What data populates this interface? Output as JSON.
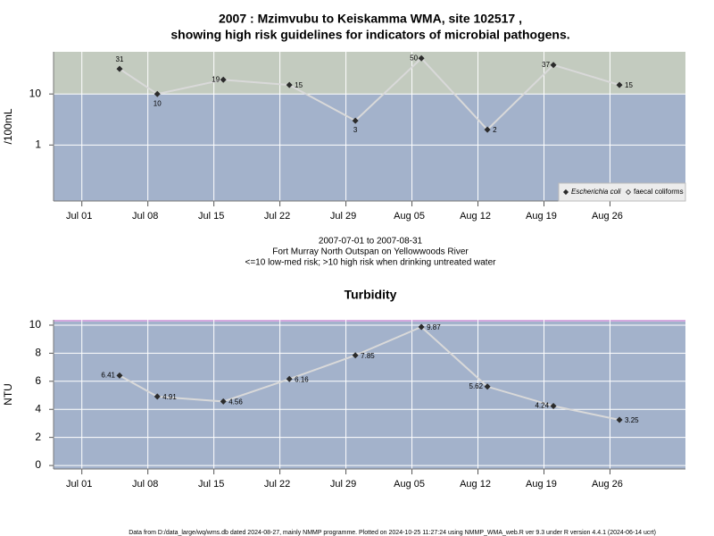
{
  "chart_data": [
    {
      "type": "line",
      "title": [
        "2007 : Mzimvubu to Keiskamma WMA, site 102517 ,",
        "showing high risk guidelines for indicators of microbial pathogens."
      ],
      "subtitle": [
        "2007-07-01 to 2007-08-31",
        "Fort Murray North Outspan on Yellowwoods River",
        "<=10 low-med risk; >10 high risk when drinking untreated water"
      ],
      "ylabel": "/100mL",
      "log_y": true,
      "threshold": 10,
      "above_color": "#c3cbbf",
      "below_color": "#a3b2cb",
      "x": [
        "2007-07-05",
        "2007-07-09",
        "2007-07-16",
        "2007-07-23",
        "2007-07-30",
        "2007-08-06",
        "2007-08-13",
        "2007-08-20",
        "2007-08-27"
      ],
      "xlim": [
        "2007-06-28",
        "2007-09-03"
      ],
      "xticks": [
        {
          "value": "2007-07-01",
          "label": "Jul 01"
        },
        {
          "value": "2007-07-08",
          "label": "Jul 08"
        },
        {
          "value": "2007-07-15",
          "label": "Jul 15"
        },
        {
          "value": "2007-07-22",
          "label": "Jul 22"
        },
        {
          "value": "2007-07-29",
          "label": "Jul 29"
        },
        {
          "value": "2007-08-05",
          "label": "Aug 05"
        },
        {
          "value": "2007-08-12",
          "label": "Aug 12"
        },
        {
          "value": "2007-08-19",
          "label": "Aug 19"
        },
        {
          "value": "2007-08-26",
          "label": "Aug 26"
        }
      ],
      "ylim": [
        0.08,
        67
      ],
      "yticks": [
        1,
        10
      ],
      "grid": true,
      "legend": "bottom right",
      "series": [
        {
          "name": "Escherichia coli",
          "color": "#2b2b2b",
          "values": [
            31,
            10,
            19,
            15,
            3,
            50,
            2,
            37,
            15
          ]
        },
        {
          "name": "faecal coliforms",
          "color": "#2b2b2b",
          "values": [
            null,
            null,
            null,
            null,
            null,
            null,
            null,
            null,
            null
          ]
        }
      ]
    },
    {
      "type": "line",
      "title": [
        "Turbidity"
      ],
      "ylabel": "NTU",
      "log_y": false,
      "below_color": "#a3b2cb",
      "x": [
        "2007-07-05",
        "2007-07-09",
        "2007-07-16",
        "2007-07-23",
        "2007-07-30",
        "2007-08-06",
        "2007-08-13",
        "2007-08-20",
        "2007-08-27"
      ],
      "xlim": [
        "2007-06-28",
        "2007-09-03"
      ],
      "xticks": [
        {
          "value": "2007-07-01",
          "label": "Jul 01"
        },
        {
          "value": "2007-07-08",
          "label": "Jul 08"
        },
        {
          "value": "2007-07-15",
          "label": "Jul 15"
        },
        {
          "value": "2007-07-22",
          "label": "Jul 22"
        },
        {
          "value": "2007-07-29",
          "label": "Jul 29"
        },
        {
          "value": "2007-08-05",
          "label": "Aug 05"
        },
        {
          "value": "2007-08-12",
          "label": "Aug 12"
        },
        {
          "value": "2007-08-19",
          "label": "Aug 19"
        },
        {
          "value": "2007-08-26",
          "label": "Aug 26"
        }
      ],
      "ylim": [
        -0.25,
        10.38
      ],
      "yticks": [
        0,
        2,
        4,
        6,
        8,
        10
      ],
      "grid": true,
      "series": [
        {
          "name": "Turbidity",
          "color": "#2b2b2b",
          "values": [
            6.41,
            4.91,
            4.56,
            6.16,
            7.85,
            9.87,
            5.62,
            4.24,
            3.25
          ]
        }
      ]
    }
  ],
  "footer": "Data from D:/data_large/wq/wms.db dated 2024-08-27, mainly NMMP programme. Plotted on 2024-10-25 11:27:24 using NMMP_WMA_web.R ver 9.3 under R version 4.4.1 (2024-06-14 ucrt)"
}
